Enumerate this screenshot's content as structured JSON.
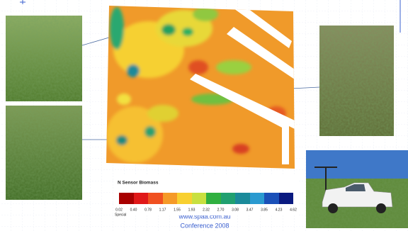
{
  "legend": {
    "title": "N Sensor Biomass",
    "ticks": [
      "0.02",
      "0.40",
      "0.78",
      "1.17",
      "1.55",
      "1.93",
      "2.32",
      "2.70",
      "3.08",
      "3.47",
      "3.85",
      "4.23",
      "4.62"
    ],
    "note": "Special"
  },
  "footer": {
    "url": "www.spaa.com.au",
    "conference": "Conference 2008"
  }
}
